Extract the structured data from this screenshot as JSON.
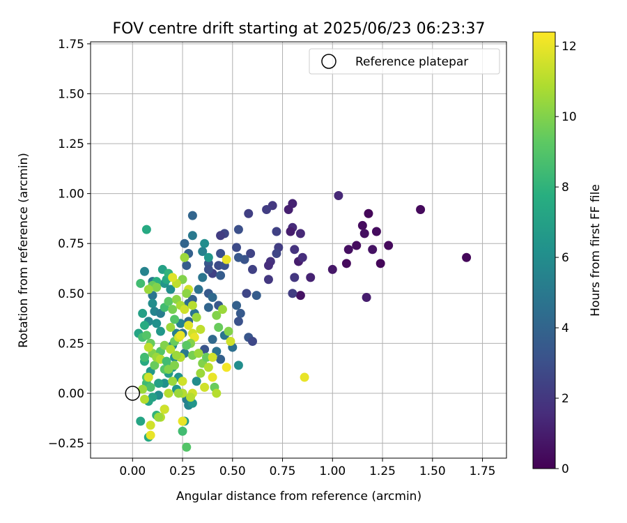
{
  "chart_data": {
    "type": "scatter",
    "title": "FOV centre drift starting at 2025/06/23 06:23:37",
    "xlabel": "Angular distance from reference (arcmin)",
    "ylabel": "Rotation from reference (arcmin)",
    "xlim": [
      -0.21,
      1.87
    ],
    "ylim": [
      -0.325,
      1.76
    ],
    "xticks": [
      0.0,
      0.25,
      0.5,
      0.75,
      1.0,
      1.25,
      1.5,
      1.75
    ],
    "xtick_labels": [
      "0.00",
      "0.25",
      "0.50",
      "0.75",
      "1.00",
      "1.25",
      "1.50",
      "1.75"
    ],
    "yticks": [
      -0.25,
      0.0,
      0.25,
      0.5,
      0.75,
      1.0,
      1.25,
      1.5,
      1.75
    ],
    "ytick_labels": [
      "−0.25",
      "0.00",
      "0.25",
      "0.50",
      "0.75",
      "1.00",
      "1.25",
      "1.50",
      "1.75"
    ],
    "grid": true,
    "legend": {
      "position": "top-right",
      "label": "Reference platepar"
    },
    "reference_point": {
      "x": 0.0,
      "y": 0.0
    },
    "colorbar": {
      "label": "Hours from first FF file",
      "min": 0,
      "max": 12.4,
      "ticks": [
        0,
        2,
        4,
        6,
        8,
        10,
        12
      ],
      "tick_labels": [
        "0",
        "2",
        "4",
        "6",
        "8",
        "10",
        "12"
      ],
      "colormap": "viridis"
    },
    "points": [
      [
        1.67,
        0.68,
        0.2
      ],
      [
        1.44,
        0.92,
        0.3
      ],
      [
        1.18,
        0.9,
        0.2
      ],
      [
        1.28,
        0.74,
        0.3
      ],
      [
        1.24,
        0.65,
        0.2
      ],
      [
        1.22,
        0.81,
        0.4
      ],
      [
        1.2,
        0.72,
        0.6
      ],
      [
        1.15,
        0.84,
        0.4
      ],
      [
        1.16,
        0.8,
        0.5
      ],
      [
        1.12,
        0.74,
        0.4
      ],
      [
        1.08,
        0.72,
        0.5
      ],
      [
        1.07,
        0.65,
        0.3
      ],
      [
        1.0,
        0.62,
        0.8
      ],
      [
        1.17,
        0.48,
        1.0
      ],
      [
        1.03,
        0.99,
        1.4
      ],
      [
        0.89,
        0.58,
        1.2
      ],
      [
        0.84,
        0.49,
        0.6
      ],
      [
        0.84,
        0.8,
        1.4
      ],
      [
        0.83,
        0.66,
        1.0
      ],
      [
        0.85,
        0.68,
        1.6
      ],
      [
        0.8,
        0.95,
        1.2
      ],
      [
        0.78,
        0.92,
        1.1
      ],
      [
        0.8,
        0.83,
        1.5
      ],
      [
        0.79,
        0.81,
        1.0
      ],
      [
        0.81,
        0.72,
        1.8
      ],
      [
        0.81,
        0.58,
        2.0
      ],
      [
        0.8,
        0.5,
        2.2
      ],
      [
        0.72,
        0.81,
        2.4
      ],
      [
        0.73,
        0.73,
        2.2
      ],
      [
        0.72,
        0.7,
        2.6
      ],
      [
        0.69,
        0.66,
        1.8
      ],
      [
        0.68,
        0.64,
        1.6
      ],
      [
        0.7,
        0.94,
        2.0
      ],
      [
        0.67,
        0.92,
        2.2
      ],
      [
        0.68,
        0.57,
        2.0
      ],
      [
        0.59,
        0.7,
        2.5
      ],
      [
        0.58,
        0.9,
        2.3
      ],
      [
        0.6,
        0.62,
        2.4
      ],
      [
        0.57,
        0.5,
        2.6
      ],
      [
        0.56,
        0.67,
        3.2
      ],
      [
        0.53,
        0.82,
        3.0
      ],
      [
        0.53,
        0.68,
        3.4
      ],
      [
        0.52,
        0.73,
        2.8
      ],
      [
        0.54,
        0.4,
        3.5
      ],
      [
        0.53,
        0.36,
        3.1
      ],
      [
        0.52,
        0.44,
        3.8
      ],
      [
        0.58,
        0.28,
        3.3
      ],
      [
        0.6,
        0.26,
        2.7
      ],
      [
        0.62,
        0.49,
        3.6
      ],
      [
        0.46,
        0.8,
        2.6
      ],
      [
        0.44,
        0.79,
        2.2
      ],
      [
        0.44,
        0.7,
        3.0
      ],
      [
        0.43,
        0.64,
        2.8
      ],
      [
        0.46,
        0.64,
        3.2
      ],
      [
        0.38,
        0.65,
        3.4
      ],
      [
        0.4,
        0.6,
        2.4
      ],
      [
        0.38,
        0.62,
        3.0
      ],
      [
        0.43,
        0.44,
        3.4
      ],
      [
        0.44,
        0.59,
        3.6
      ],
      [
        0.38,
        0.5,
        3.5
      ],
      [
        0.36,
        0.22,
        3.2
      ],
      [
        0.38,
        0.43,
        4.0
      ],
      [
        0.4,
        0.27,
        4.2
      ],
      [
        0.42,
        0.21,
        4.6
      ],
      [
        0.44,
        0.17,
        3.8
      ],
      [
        0.5,
        0.23,
        4.5
      ],
      [
        0.53,
        0.14,
        6.0
      ],
      [
        0.46,
        0.29,
        4.8
      ],
      [
        0.35,
        0.71,
        5.4
      ],
      [
        0.36,
        0.75,
        6.0
      ],
      [
        0.38,
        0.68,
        6.5
      ],
      [
        0.4,
        0.48,
        4.2
      ],
      [
        0.35,
        0.58,
        4.8
      ],
      [
        0.33,
        0.52,
        4.6
      ],
      [
        0.3,
        0.89,
        4.0
      ],
      [
        0.3,
        0.79,
        5.0
      ],
      [
        0.26,
        0.75,
        4.0
      ],
      [
        0.28,
        0.7,
        3.8
      ],
      [
        0.27,
        0.64,
        3.6
      ],
      [
        0.28,
        0.45,
        4.4
      ],
      [
        0.3,
        0.47,
        3.8
      ],
      [
        0.31,
        0.4,
        4.8
      ],
      [
        0.26,
        0.2,
        5.0
      ],
      [
        0.28,
        0.36,
        4.0
      ],
      [
        0.25,
        0.3,
        4.6
      ],
      [
        0.22,
        0.3,
        5.2
      ],
      [
        0.24,
        0.35,
        5.5
      ],
      [
        0.2,
        0.24,
        5.8
      ],
      [
        0.21,
        0.18,
        6.0
      ],
      [
        0.2,
        0.13,
        6.5
      ],
      [
        0.18,
        0.1,
        6.8
      ],
      [
        0.23,
        0.08,
        6.2
      ],
      [
        0.27,
        -0.03,
        5.2
      ],
      [
        0.28,
        -0.06,
        5.6
      ],
      [
        0.3,
        -0.05,
        6.4
      ],
      [
        0.26,
        -0.14,
        6.8
      ],
      [
        0.32,
        0.06,
        6.0
      ],
      [
        0.25,
        0.0,
        5.4
      ],
      [
        0.22,
        0.02,
        6.5
      ],
      [
        0.16,
        0.05,
        6.2
      ],
      [
        0.13,
        0.05,
        7.0
      ],
      [
        0.13,
        -0.01,
        6.0
      ],
      [
        0.1,
        -0.02,
        7.0
      ],
      [
        0.08,
        -0.04,
        7.2
      ],
      [
        0.07,
        0.05,
        8.4
      ],
      [
        0.09,
        0.11,
        6.6
      ],
      [
        0.06,
        0.16,
        7.5
      ],
      [
        0.04,
        -0.14,
        7.2
      ],
      [
        0.12,
        -0.11,
        8.0
      ],
      [
        0.08,
        -0.22,
        7.5
      ],
      [
        0.16,
        -0.08,
        7.8
      ],
      [
        0.25,
        -0.19,
        8.5
      ],
      [
        0.27,
        -0.27,
        9.0
      ],
      [
        0.06,
        0.61,
        5.5
      ],
      [
        0.1,
        0.56,
        5.0
      ],
      [
        0.1,
        0.49,
        4.8
      ],
      [
        0.1,
        0.45,
        6.0
      ],
      [
        0.08,
        0.36,
        5.8
      ],
      [
        0.11,
        0.41,
        5.6
      ],
      [
        0.12,
        0.35,
        6.2
      ],
      [
        0.14,
        0.31,
        6.5
      ],
      [
        0.14,
        0.4,
        5.2
      ],
      [
        0.16,
        0.55,
        6.4
      ],
      [
        0.17,
        0.57,
        7.5
      ],
      [
        0.19,
        0.52,
        6.0
      ],
      [
        0.15,
        0.62,
        7.0
      ],
      [
        0.18,
        0.6,
        8.0
      ],
      [
        0.12,
        0.56,
        7.8
      ],
      [
        0.07,
        0.82,
        7.5
      ],
      [
        0.05,
        0.4,
        7.0
      ],
      [
        0.06,
        0.34,
        7.6
      ],
      [
        0.03,
        0.3,
        7.2
      ],
      [
        0.05,
        0.28,
        8.6
      ],
      [
        0.07,
        0.29,
        9.0
      ],
      [
        0.04,
        0.55,
        8.5
      ],
      [
        0.1,
        0.54,
        9.5
      ],
      [
        0.12,
        0.53,
        10.0
      ],
      [
        0.08,
        0.52,
        10.5
      ],
      [
        0.09,
        0.25,
        9.5
      ],
      [
        0.1,
        0.2,
        10.0
      ],
      [
        0.06,
        0.18,
        8.5
      ],
      [
        0.07,
        0.08,
        9.0
      ],
      [
        0.09,
        0.03,
        8.8
      ],
      [
        0.11,
        0.14,
        9.5
      ],
      [
        0.14,
        0.21,
        9.0
      ],
      [
        0.16,
        0.24,
        10.0
      ],
      [
        0.12,
        0.18,
        10.5
      ],
      [
        0.14,
        0.17,
        11.0
      ],
      [
        0.08,
        0.23,
        11.2
      ],
      [
        0.08,
        0.08,
        11.5
      ],
      [
        0.05,
        0.02,
        10.5
      ],
      [
        0.06,
        -0.03,
        11.0
      ],
      [
        0.16,
        0.12,
        9.0
      ],
      [
        0.17,
        0.16,
        8.5
      ],
      [
        0.18,
        0.12,
        10.0
      ],
      [
        0.19,
        0.22,
        11.0
      ],
      [
        0.21,
        0.26,
        9.5
      ],
      [
        0.23,
        0.28,
        11.5
      ],
      [
        0.21,
        0.37,
        9.0
      ],
      [
        0.19,
        0.33,
        10.5
      ],
      [
        0.16,
        0.43,
        8.5
      ],
      [
        0.18,
        0.46,
        9.2
      ],
      [
        0.2,
        0.42,
        9.8
      ],
      [
        0.22,
        0.47,
        10.2
      ],
      [
        0.24,
        0.44,
        10.8
      ],
      [
        0.26,
        0.42,
        11.5
      ],
      [
        0.25,
        0.57,
        10.0
      ],
      [
        0.26,
        0.68,
        10.5
      ],
      [
        0.22,
        0.55,
        11.2
      ],
      [
        0.2,
        0.58,
        11.8
      ],
      [
        0.28,
        0.52,
        11.5
      ],
      [
        0.3,
        0.44,
        11.0
      ],
      [
        0.32,
        0.38,
        10.5
      ],
      [
        0.34,
        0.32,
        11.2
      ],
      [
        0.3,
        0.3,
        11.5
      ],
      [
        0.28,
        0.34,
        11.8
      ],
      [
        0.31,
        0.28,
        12.0
      ],
      [
        0.29,
        0.25,
        10.0
      ],
      [
        0.27,
        0.24,
        9.2
      ],
      [
        0.3,
        0.19,
        9.8
      ],
      [
        0.33,
        0.2,
        10.5
      ],
      [
        0.35,
        0.15,
        10.0
      ],
      [
        0.37,
        0.18,
        9.5
      ],
      [
        0.38,
        0.13,
        11.0
      ],
      [
        0.4,
        0.18,
        11.5
      ],
      [
        0.34,
        0.1,
        10.5
      ],
      [
        0.36,
        0.03,
        11.5
      ],
      [
        0.4,
        0.08,
        12.0
      ],
      [
        0.41,
        0.03,
        9.5
      ],
      [
        0.42,
        0.0,
        11.0
      ],
      [
        0.47,
        0.13,
        12.2
      ],
      [
        0.42,
        0.39,
        10.0
      ],
      [
        0.45,
        0.42,
        10.5
      ],
      [
        0.43,
        0.33,
        9.5
      ],
      [
        0.48,
        0.31,
        10.0
      ],
      [
        0.49,
        0.26,
        11.5
      ],
      [
        0.47,
        0.67,
        12.0
      ],
      [
        0.86,
        0.08,
        12.0
      ],
      [
        0.3,
        0.0,
        11.5
      ],
      [
        0.29,
        -0.02,
        11.0
      ],
      [
        0.25,
        0.06,
        11.5
      ],
      [
        0.24,
        0.18,
        11.0
      ],
      [
        0.22,
        0.19,
        10.5
      ],
      [
        0.21,
        0.14,
        10.0
      ],
      [
        0.2,
        0.06,
        10.5
      ],
      [
        0.18,
        0.0,
        11.0
      ],
      [
        0.16,
        -0.08,
        11.5
      ],
      [
        0.14,
        -0.12,
        11.0
      ],
      [
        0.13,
        -0.12,
        10.5
      ],
      [
        0.09,
        -0.16,
        11.5
      ],
      [
        0.09,
        -0.21,
        12.0
      ],
      [
        0.25,
        -0.14,
        12.0
      ],
      [
        0.25,
        0.0,
        11.0
      ],
      [
        0.23,
        0.0,
        10.5
      ],
      [
        0.27,
        0.5,
        10.2
      ],
      [
        0.24,
        0.29,
        12.0
      ]
    ]
  }
}
